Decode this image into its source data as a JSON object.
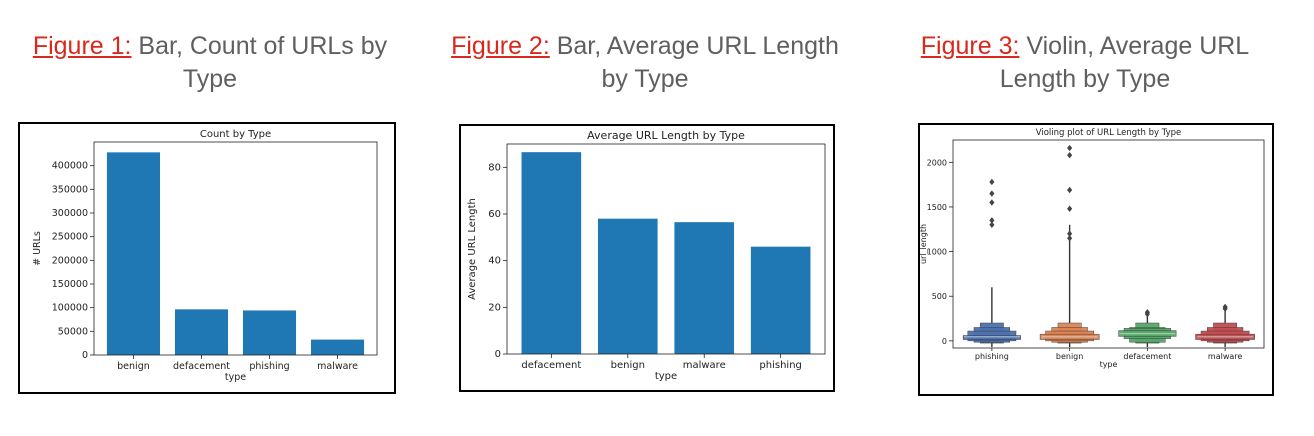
{
  "captions": [
    {
      "figure": "Figure 1:",
      "text": " Bar, Count of URLs by Type"
    },
    {
      "figure": "Figure 2:",
      "text": " Bar, Average URL Length by Type"
    },
    {
      "figure": "Figure 3:",
      "text": " Violin, Average URL Length by Type"
    }
  ],
  "colors": {
    "bar": "#1f77b4",
    "caption_link": "#d9281c",
    "caption_text": "#5f5f5f"
  },
  "chart_data": [
    {
      "type": "bar",
      "title": "Count by Type",
      "xlabel": "type",
      "ylabel": "# URLs",
      "categories": [
        "benign",
        "defacement",
        "phishing",
        "malware"
      ],
      "values": [
        428103,
        96457,
        94111,
        32520
      ],
      "ylim": [
        0,
        450000
      ],
      "yticks": [
        0,
        50000,
        100000,
        150000,
        200000,
        250000,
        300000,
        350000,
        400000
      ],
      "ytick_labels": [
        "0",
        "50000",
        "100000",
        "150000",
        "200000",
        "250000",
        "300000",
        "350000",
        "400000"
      ],
      "grid": false
    },
    {
      "type": "bar",
      "title": "Average URL Length by Type",
      "xlabel": "type",
      "ylabel": "Average URL Length",
      "categories": [
        "defacement",
        "benign",
        "malware",
        "phishing"
      ],
      "values": [
        86.5,
        58,
        56.5,
        46
      ],
      "ylim": [
        0,
        90
      ],
      "yticks": [
        0,
        20,
        40,
        60,
        80
      ],
      "ytick_labels": [
        "0",
        "20",
        "40",
        "60",
        "80"
      ],
      "grid": false
    },
    {
      "type": "violin",
      "title": "Violing plot of URL Length by Type",
      "xlabel": "type",
      "ylabel": "url_length",
      "categories": [
        "phishing",
        "benign",
        "defacement",
        "malware"
      ],
      "colors": [
        "#4c72b0",
        "#dd8452",
        "#55a868",
        "#c44e52"
      ],
      "spike_top": [
        600,
        1300,
        320,
        380
      ],
      "outliers": [
        [
          1300,
          1350,
          1550,
          1650,
          1780
        ],
        [
          1150,
          1200,
          1480,
          1690,
          2080,
          2160
        ],
        [
          300,
          320
        ],
        [
          360,
          380
        ]
      ],
      "ylim": [
        -80,
        2250
      ],
      "yticks": [
        0,
        500,
        1000,
        1500,
        2000
      ],
      "ytick_labels": [
        "0",
        "500",
        "1000",
        "1500",
        "2000"
      ],
      "grid": false
    }
  ]
}
